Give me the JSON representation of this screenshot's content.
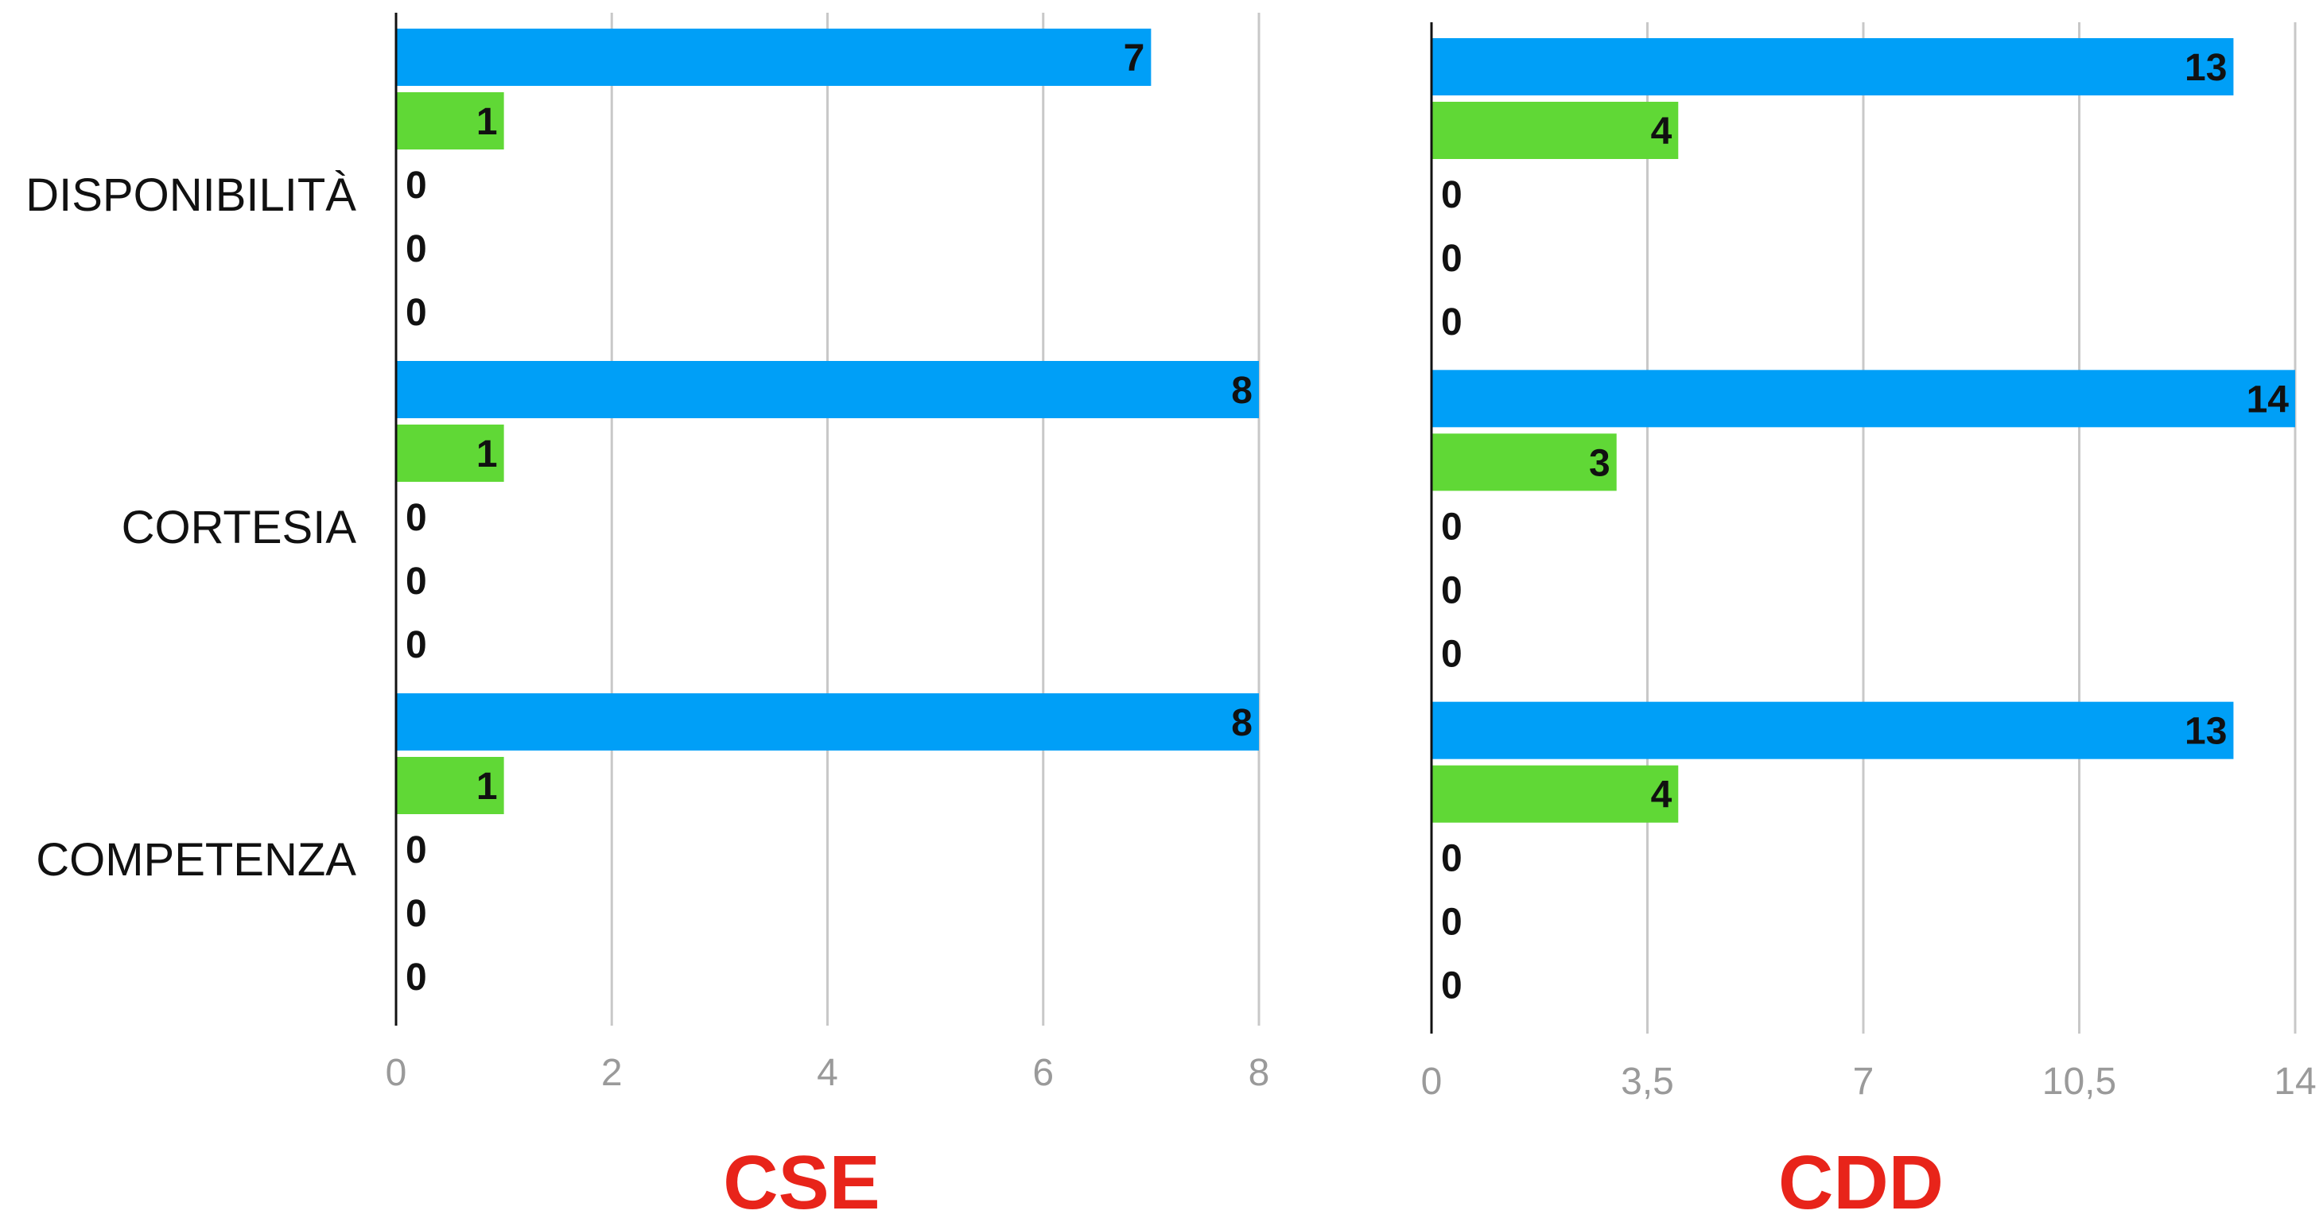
{
  "chart_data": [
    {
      "type": "bar",
      "orientation": "horizontal",
      "title": "CSE",
      "title_color": "#e8241a",
      "categories": [
        "DISPONIBILITÀ",
        "CORTESIA",
        "COMPETENZA"
      ],
      "series": [
        {
          "color": "#009ff7",
          "values": [
            7,
            8,
            8
          ]
        },
        {
          "color": "#60d836",
          "values": [
            1,
            1,
            1
          ]
        },
        {
          "color": "#cccccc",
          "values": [
            0,
            0,
            0
          ]
        },
        {
          "color": "#cccccc",
          "values": [
            0,
            0,
            0
          ]
        },
        {
          "color": "#cccccc",
          "values": [
            0,
            0,
            0
          ]
        }
      ],
      "xlim": [
        0,
        8
      ],
      "xticks": [
        "0",
        "2",
        "4",
        "6",
        "8"
      ],
      "grid": true,
      "show_category_labels": true
    },
    {
      "type": "bar",
      "orientation": "horizontal",
      "title": "CDD",
      "title_color": "#e8241a",
      "categories": [
        "DISPONIBILITÀ",
        "CORTESIA",
        "COMPETENZA"
      ],
      "series": [
        {
          "color": "#009ff7",
          "values": [
            13,
            14,
            13
          ]
        },
        {
          "color": "#60d836",
          "values": [
            4,
            3,
            4
          ]
        },
        {
          "color": "#cccccc",
          "values": [
            0,
            0,
            0
          ]
        },
        {
          "color": "#cccccc",
          "values": [
            0,
            0,
            0
          ]
        },
        {
          "color": "#cccccc",
          "values": [
            0,
            0,
            0
          ]
        }
      ],
      "xlim": [
        0,
        14
      ],
      "xticks": [
        "0",
        "3,5",
        "7",
        "10,5",
        "14"
      ],
      "grid": true,
      "show_category_labels": false
    }
  ]
}
